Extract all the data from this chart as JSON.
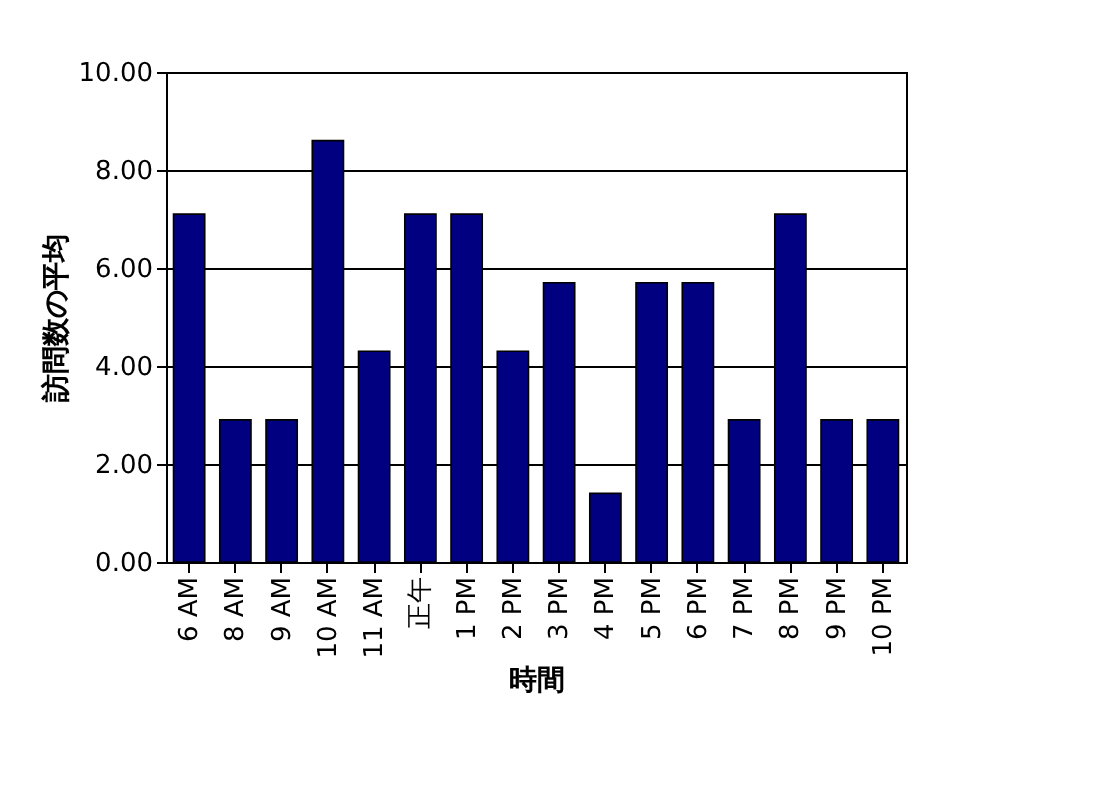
{
  "chart_data": {
    "type": "bar",
    "xlabel": "時間",
    "ylabel": "訪問数の平均",
    "categories": [
      "6 AM",
      "8 AM",
      "9 AM",
      "10 AM",
      "11 AM",
      "正午",
      "1 PM",
      "2 PM",
      "3 PM",
      "4 PM",
      "5 PM",
      "6 PM",
      "7 PM",
      "8 PM",
      "9 PM",
      "10 PM"
    ],
    "values": [
      7.1,
      2.9,
      2.9,
      8.6,
      4.3,
      7.1,
      7.1,
      4.3,
      5.7,
      1.4,
      5.7,
      5.7,
      2.9,
      7.1,
      2.9,
      2.9
    ],
    "color": "#000080",
    "ylim": [
      0,
      10
    ],
    "yticks": [
      {
        "value": 0,
        "label": "0.00"
      },
      {
        "value": 2,
        "label": "2.00"
      },
      {
        "value": 4,
        "label": "4.00"
      },
      {
        "value": 6,
        "label": "6.00"
      },
      {
        "value": 8,
        "label": "8.00"
      },
      {
        "value": 10,
        "label": "10.00"
      }
    ],
    "grid": "y"
  }
}
